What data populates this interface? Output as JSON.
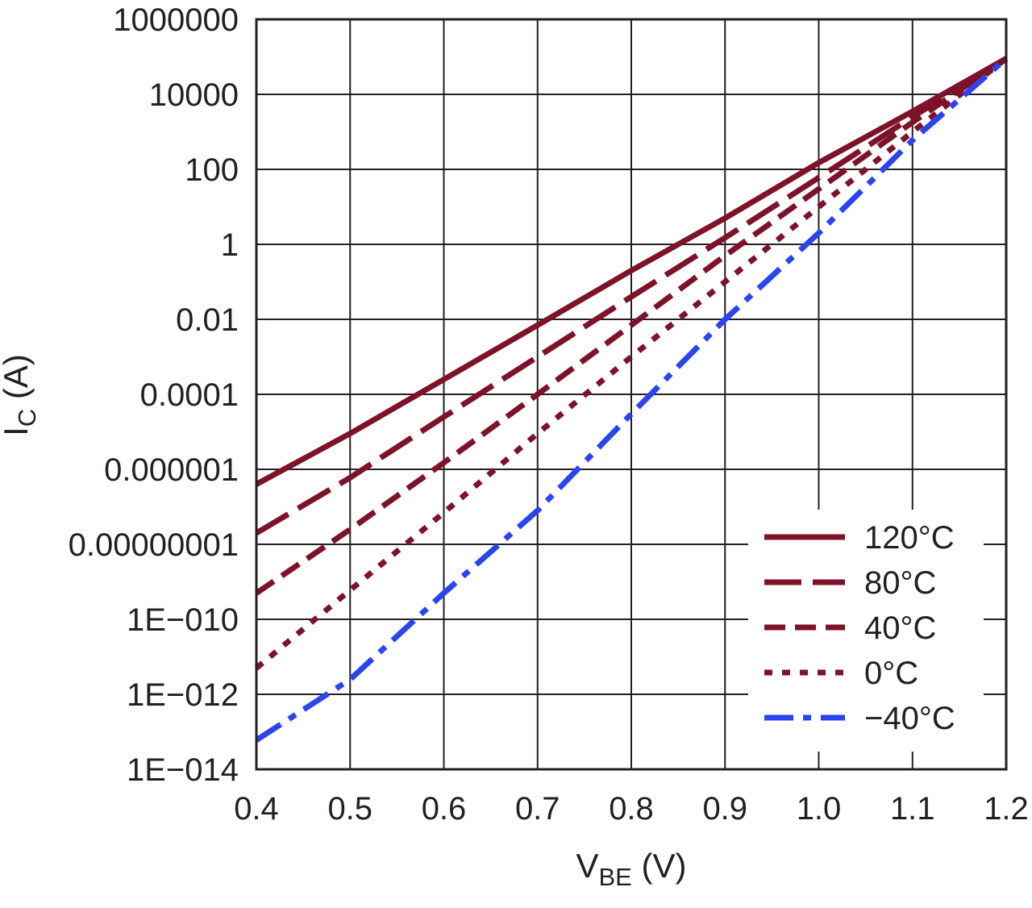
{
  "chart_data": {
    "type": "line",
    "title": "",
    "xlabel": {
      "main": "V",
      "sub": "BE",
      "unit": " (V)"
    },
    "ylabel": {
      "main": "I",
      "sub": "C",
      "unit": " (A)"
    },
    "xlim": [
      0.4,
      1.2
    ],
    "ylim_log10": [
      -14,
      6
    ],
    "y_scale": "log",
    "grid": true,
    "legend_position": "bottom-right",
    "x_ticks": [
      "0.4",
      "0.5",
      "0.6",
      "0.7",
      "0.8",
      "0.9",
      "1.0",
      "1.1",
      "1.2"
    ],
    "x_tick_values": [
      0.4,
      0.5,
      0.6,
      0.7,
      0.8,
      0.9,
      1.0,
      1.1,
      1.2
    ],
    "y_ticks": [
      "1000000",
      "10000",
      "100",
      "1",
      "0.01",
      "0.0001",
      "0.000001",
      "0.00000001",
      "1E−010",
      "1E−012",
      "1E−014"
    ],
    "y_tick_values": [
      1000000,
      10000,
      100,
      1,
      0.01,
      0.0001,
      1e-06,
      1e-08,
      1e-10,
      1e-12,
      1e-14
    ],
    "series": [
      {
        "name": "120°C",
        "color": "#7d1228",
        "dash": "solid",
        "points": [
          [
            0.4,
            4e-07
          ],
          [
            0.5,
            9e-06
          ],
          [
            0.6,
            0.00025
          ],
          [
            0.7,
            0.007
          ],
          [
            0.8,
            0.2
          ],
          [
            0.9,
            5
          ],
          [
            1.0,
            150
          ],
          [
            1.1,
            3500
          ],
          [
            1.2,
            90000
          ]
        ]
      },
      {
        "name": "80°C",
        "color": "#7d1228",
        "dash": "long-dash",
        "points": [
          [
            0.4,
            2e-08
          ],
          [
            0.5,
            6e-07
          ],
          [
            0.6,
            2.5e-05
          ],
          [
            0.7,
            0.001
          ],
          [
            0.8,
            0.04
          ],
          [
            0.9,
            1.5
          ],
          [
            1.0,
            60
          ],
          [
            1.1,
            2500
          ],
          [
            1.2,
            90000
          ]
        ]
      },
      {
        "name": "40°C",
        "color": "#7d1228",
        "dash": "dash",
        "points": [
          [
            0.4,
            5e-10
          ],
          [
            0.5,
            2.5e-08
          ],
          [
            0.6,
            1.5e-06
          ],
          [
            0.7,
            0.0001
          ],
          [
            0.8,
            0.007
          ],
          [
            0.9,
            0.5
          ],
          [
            1.0,
            30
          ],
          [
            1.1,
            1800
          ],
          [
            1.2,
            90000
          ]
        ]
      },
      {
        "name": "0°C",
        "color": "#7d1228",
        "dash": "dot",
        "points": [
          [
            0.4,
            5e-12
          ],
          [
            0.5,
            6e-10
          ],
          [
            0.6,
            7e-08
          ],
          [
            0.7,
            9e-06
          ],
          [
            0.8,
            0.001
          ],
          [
            0.9,
            0.1
          ],
          [
            1.0,
            10
          ],
          [
            1.1,
            1000
          ],
          [
            1.2,
            90000
          ]
        ]
      },
      {
        "name": "−40°C",
        "color": "#2a44ee",
        "dash": "dash-dot",
        "points": [
          [
            0.4,
            6e-14
          ],
          [
            0.5,
            2.5e-12
          ],
          [
            0.6,
            5e-10
          ],
          [
            0.7,
            8e-08
          ],
          [
            0.8,
            3e-05
          ],
          [
            0.9,
            0.01
          ],
          [
            1.0,
            2
          ],
          [
            1.1,
            600
          ],
          [
            1.2,
            90000
          ]
        ]
      }
    ]
  }
}
